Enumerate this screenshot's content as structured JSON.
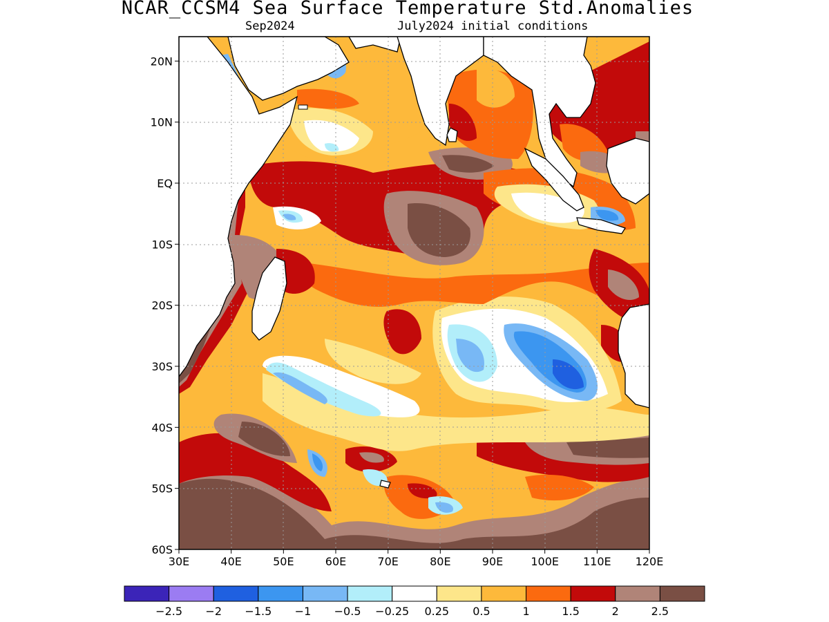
{
  "title": "NCAR_CCSM4 Sea Surface Temperature Std.Anomalies",
  "subtitle_left": "Sep2024",
  "subtitle_right": "July2024 initial conditions",
  "map": {
    "region": "Indian Ocean",
    "lon_range": [
      30,
      120
    ],
    "lat_range": [
      -60,
      24
    ],
    "x_ticks": [
      "30E",
      "40E",
      "50E",
      "60E",
      "70E",
      "80E",
      "90E",
      "100E",
      "110E",
      "120E"
    ],
    "y_ticks": [
      "20N",
      "10N",
      "EQ",
      "10S",
      "20S",
      "30S",
      "40S",
      "50S",
      "60S"
    ],
    "grid": "dotted"
  },
  "colorbar": {
    "colors": [
      "#3b24b8",
      "#9b7cf2",
      "#1f60e0",
      "#3c96f0",
      "#78b8f5",
      "#b2eefa",
      "#ffffff",
      "#fde68a",
      "#fdb93b",
      "#fb6a0f",
      "#c20a0a",
      "#b08478",
      "#7a4f44"
    ],
    "labels": [
      "−2.5",
      "−2",
      "−1.5",
      "−1",
      "−0.5",
      "−0.25",
      "0.25",
      "0.5",
      "1",
      "1.5",
      "2",
      "2.5"
    ]
  },
  "land_color": "#ffffff",
  "coastline_color": "#000000"
}
